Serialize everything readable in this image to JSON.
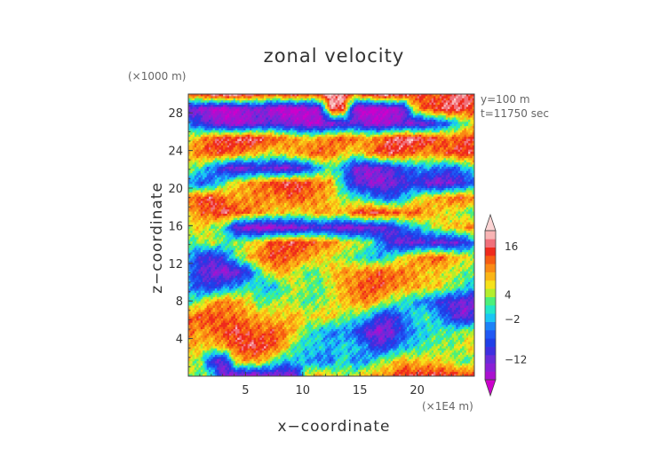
{
  "chart_data": {
    "type": "heatmap",
    "title": "zonal velocity",
    "xlabel": "x−coordinate",
    "ylabel": "z−coordinate",
    "x_unit": "(×1E4 m)",
    "y_unit": "(×1000 m)",
    "annotations": [
      "y=100 m",
      "t=11750 sec"
    ],
    "xlim": [
      0,
      25
    ],
    "ylim": [
      0,
      30
    ],
    "x_ticks": [
      5,
      10,
      15,
      20
    ],
    "y_ticks": [
      4,
      8,
      12,
      16,
      20,
      24,
      28
    ],
    "grid": false,
    "colorbar": {
      "placement": "right",
      "tick_values": [
        16,
        4,
        -2,
        -12
      ],
      "tick_labels": [
        "16",
        "4",
        "−2",
        "−12"
      ],
      "levels": [
        -20,
        -17,
        -14,
        -12,
        -10,
        -8,
        -6,
        -4,
        -2,
        0,
        2,
        4,
        6,
        8,
        10,
        12,
        14,
        16,
        18,
        20
      ],
      "colors": [
        "#cc00cc",
        "#aa10d0",
        "#8a1fd6",
        "#6a2bd9",
        "#3e2fe0",
        "#1f3fe8",
        "#2058f4",
        "#1c82f8",
        "#19c6f4",
        "#22e8c8",
        "#4cf07a",
        "#b4ee2c",
        "#f6e21a",
        "#fbb516",
        "#fa8a14",
        "#f65c12",
        "#ef2a1c",
        "#f0707a",
        "#f8b4b4",
        "#fcd4d4"
      ]
    },
    "field_rows_bottom_to_top": [
      [
        4,
        4,
        2,
        -14,
        -14,
        -16,
        -16,
        -14,
        -14,
        -14,
        8,
        10,
        8,
        4,
        6,
        10,
        10,
        12,
        16,
        16,
        16,
        16,
        16,
        14,
        16
      ],
      [
        6,
        4,
        -10,
        -12,
        8,
        10,
        10,
        4,
        -2,
        0,
        -2,
        -4,
        -4,
        2,
        -4,
        -2,
        4,
        6,
        10,
        8,
        8,
        8,
        6,
        2,
        4
      ],
      [
        10,
        8,
        8,
        10,
        14,
        16,
        16,
        14,
        10,
        2,
        0,
        0,
        -2,
        0,
        0,
        -4,
        -10,
        -6,
        -2,
        0,
        2,
        4,
        4,
        6,
        8
      ],
      [
        12,
        10,
        12,
        14,
        16,
        14,
        12,
        14,
        12,
        8,
        2,
        0,
        -4,
        -2,
        -6,
        -12,
        -14,
        -12,
        -6,
        -2,
        0,
        2,
        2,
        4,
        6
      ],
      [
        12,
        14,
        14,
        12,
        12,
        10,
        10,
        8,
        8,
        10,
        6,
        8,
        8,
        4,
        2,
        0,
        -8,
        -10,
        -4,
        0,
        2,
        -2,
        -8,
        -12,
        -10
      ],
      [
        2,
        4,
        10,
        12,
        10,
        8,
        2,
        4,
        6,
        4,
        2,
        4,
        6,
        8,
        10,
        12,
        8,
        4,
        2,
        -2,
        -4,
        -8,
        -10,
        -12,
        -12
      ],
      [
        -4,
        -6,
        -8,
        -4,
        -2,
        2,
        0,
        -2,
        2,
        6,
        4,
        2,
        6,
        10,
        12,
        14,
        14,
        12,
        10,
        10,
        8,
        8,
        4,
        2,
        -2
      ],
      [
        -2,
        -10,
        -12,
        -14,
        -12,
        -8,
        2,
        8,
        10,
        6,
        2,
        4,
        8,
        10,
        10,
        12,
        14,
        12,
        12,
        10,
        8,
        8,
        6,
        4,
        2
      ],
      [
        -2,
        -8,
        -10,
        -6,
        2,
        8,
        12,
        14,
        14,
        12,
        10,
        8,
        6,
        4,
        2,
        0,
        -2,
        2,
        6,
        10,
        12,
        14,
        10,
        8,
        6
      ],
      [
        2,
        4,
        6,
        2,
        4,
        6,
        8,
        14,
        14,
        16,
        14,
        12,
        12,
        8,
        6,
        4,
        -2,
        -10,
        -12,
        -12,
        -10,
        -12,
        -12,
        -10,
        -4
      ],
      [
        6,
        8,
        4,
        2,
        -12,
        -14,
        -16,
        -16,
        -14,
        -14,
        -12,
        -10,
        -12,
        -14,
        -14,
        -12,
        -12,
        -10,
        -4,
        -2,
        2,
        6,
        8,
        10,
        12
      ],
      [
        8,
        12,
        14,
        16,
        14,
        12,
        10,
        8,
        8,
        6,
        8,
        10,
        10,
        8,
        14,
        16,
        16,
        14,
        12,
        14,
        10,
        8,
        6,
        4,
        2
      ],
      [
        12,
        14,
        16,
        12,
        10,
        10,
        12,
        10,
        12,
        14,
        12,
        10,
        8,
        4,
        2,
        0,
        -4,
        -6,
        -2,
        4,
        8,
        10,
        12,
        14,
        10
      ],
      [
        -2,
        -6,
        -4,
        2,
        8,
        10,
        12,
        14,
        16,
        16,
        14,
        12,
        10,
        -2,
        -10,
        -12,
        -14,
        -12,
        -10,
        -8,
        -12,
        -14,
        -12,
        -10,
        -4
      ],
      [
        4,
        2,
        -4,
        -10,
        -14,
        -12,
        -10,
        -12,
        -14,
        -12,
        -8,
        -2,
        2,
        -2,
        -12,
        -14,
        -12,
        -10,
        -6,
        -4,
        -2,
        -4,
        -6,
        -2,
        2
      ],
      [
        10,
        12,
        14,
        14,
        12,
        10,
        8,
        6,
        8,
        10,
        12,
        14,
        12,
        8,
        6,
        10,
        14,
        16,
        14,
        12,
        10,
        12,
        14,
        16,
        14
      ],
      [
        6,
        10,
        14,
        16,
        16,
        18,
        16,
        14,
        12,
        10,
        8,
        10,
        12,
        14,
        12,
        10,
        12,
        16,
        18,
        18,
        16,
        14,
        12,
        14,
        16
      ],
      [
        -4,
        -8,
        -12,
        -14,
        -16,
        -14,
        -12,
        -10,
        -12,
        -14,
        -16,
        -16,
        -14,
        -12,
        -10,
        -14,
        -16,
        -14,
        -12,
        -14,
        -12,
        -8,
        -4,
        2,
        6
      ],
      [
        -12,
        -14,
        -16,
        -18,
        -16,
        -14,
        -12,
        -16,
        -18,
        -18,
        -16,
        -14,
        18,
        16,
        -16,
        -18,
        -18,
        -16,
        -14,
        8,
        14,
        16,
        18,
        16,
        14
      ],
      [
        12,
        16,
        18,
        20,
        20,
        18,
        16,
        14,
        16,
        18,
        14,
        16,
        20,
        18,
        12,
        16,
        20,
        20,
        18,
        16,
        14,
        12,
        16,
        18,
        16
      ]
    ]
  }
}
